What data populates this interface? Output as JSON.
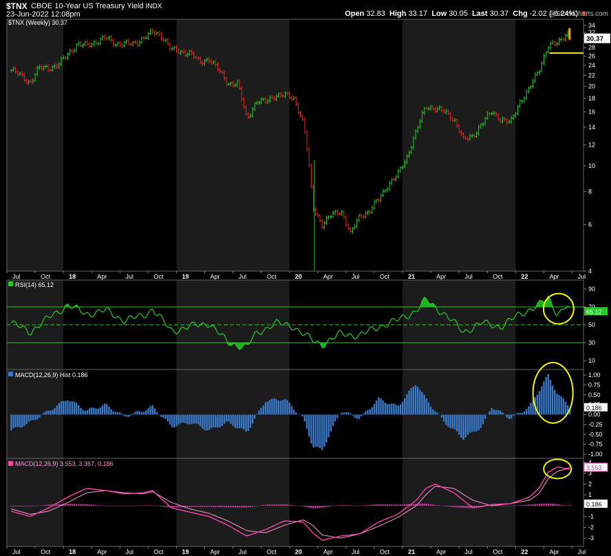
{
  "header": {
    "symbol": "$TNX",
    "name": "CBOE 10-Year US Treasury Yield",
    "exchange": "INDX",
    "date": "23-Jun-2022 12:08pm",
    "watermark": "@StockCharts.com",
    "open_label": "Open",
    "open": "32.83",
    "high_label": "High",
    "high": "33.17",
    "low_label": "Low",
    "low": "30.05",
    "last_label": "Last",
    "last": "30.37",
    "chg_label": "Chg",
    "chg": "-2.02 (-6.24%)",
    "chg_arrow": "▼"
  },
  "colors": {
    "up": "#22cc22",
    "down": "#ee2222",
    "rsi": "#22cc22",
    "hist": "#3a78c8",
    "macd": "#ff44aa",
    "signal": "#ff9ad0",
    "highlight": "#f5f500",
    "price_tag": "#4a4a4a",
    "annotation": "#f5f500"
  },
  "x_axis": {
    "labels": [
      "Jul",
      "Oct",
      "18",
      "Apr",
      "Jul",
      "Oct",
      "19",
      "Apr",
      "Jul",
      "Oct",
      "20",
      "Apr",
      "Jul",
      "Oct",
      "21",
      "Apr",
      "Jul",
      "Oct",
      "22",
      "Apr",
      "Jul"
    ],
    "bold": [
      "18",
      "19",
      "20",
      "21",
      "22"
    ]
  },
  "chart_data": [
    {
      "type": "candlestick",
      "title": "$TNX (Weekly) 30.37",
      "y_scale": "log",
      "ylim": [
        4,
        35
      ],
      "y_ticks": [
        4,
        6,
        8,
        10,
        12,
        14,
        16,
        18,
        20,
        22,
        24,
        26,
        28,
        30,
        32,
        34
      ],
      "last_value": "30.37",
      "support_line": 26.7,
      "series": {
        "name": "$TNX",
        "anchors": [
          [
            "Jul 2017",
            23.0
          ],
          [
            "Aug 2017",
            22.0
          ],
          [
            "Sep 2017",
            20.6
          ],
          [
            "Oct 2017",
            23.5
          ],
          [
            "Nov 2017",
            23.5
          ],
          [
            "Dec 2017",
            24.0
          ],
          [
            "Jan 2018",
            26.5
          ],
          [
            "Feb 2018",
            28.8
          ],
          [
            "Mar 2018",
            28.5
          ],
          [
            "Apr 2018",
            29.5
          ],
          [
            "May 2018",
            30.5
          ],
          [
            "Jun 2018",
            29.0
          ],
          [
            "Jul 2018",
            29.0
          ],
          [
            "Aug 2018",
            28.8
          ],
          [
            "Sep 2018",
            30.5
          ],
          [
            "Oct 2018",
            32.0
          ],
          [
            "Nov 2018",
            31.0
          ],
          [
            "Dec 2018",
            27.5
          ],
          [
            "Jan 2019",
            27.0
          ],
          [
            "Feb 2019",
            26.8
          ],
          [
            "Mar 2019",
            24.5
          ],
          [
            "Apr 2019",
            25.5
          ],
          [
            "May 2019",
            23.0
          ],
          [
            "Jun 2019",
            20.5
          ],
          [
            "Jul 2019",
            20.5
          ],
          [
            "Aug 2019",
            15.0
          ],
          [
            "Sep 2019",
            17.5
          ],
          [
            "Oct 2019",
            17.5
          ],
          [
            "Nov 2019",
            18.5
          ],
          [
            "Dec 2019",
            18.5
          ],
          [
            "Jan 2020",
            18.0
          ],
          [
            "Feb 2020",
            14.5
          ],
          [
            "Mar 2020",
            7.0
          ],
          [
            "Apr 2020",
            6.0
          ],
          [
            "May 2020",
            6.5
          ],
          [
            "Jun 2020",
            6.8
          ],
          [
            "Jul 2020",
            5.5
          ],
          [
            "Aug 2020",
            6.5
          ],
          [
            "Sep 2020",
            6.7
          ],
          [
            "Oct 2020",
            7.5
          ],
          [
            "Nov 2020",
            8.5
          ],
          [
            "Dec 2020",
            9.2
          ],
          [
            "Jan 2021",
            10.8
          ],
          [
            "Feb 2021",
            13.5
          ],
          [
            "Mar 2021",
            16.8
          ],
          [
            "Apr 2021",
            16.5
          ],
          [
            "May 2021",
            16.0
          ],
          [
            "Jun 2021",
            15.0
          ],
          [
            "Jul 2021",
            12.5
          ],
          [
            "Aug 2021",
            13.0
          ],
          [
            "Sep 2021",
            14.5
          ],
          [
            "Oct 2021",
            16.0
          ],
          [
            "Nov 2021",
            15.0
          ],
          [
            "Dec 2021",
            14.5
          ],
          [
            "Jan 2022",
            17.5
          ],
          [
            "Feb 2022",
            19.5
          ],
          [
            "Mar 2022",
            23.0
          ],
          [
            "Apr 2022",
            28.5
          ],
          [
            "May 2022",
            29.0
          ],
          [
            "Jun 2022",
            32.0
          ],
          [
            "Jun 23 2022",
            30.37
          ]
        ]
      }
    },
    {
      "type": "line",
      "title": "RSI(14) 65.12",
      "ylim": [
        0,
        100
      ],
      "y_ticks": [
        10,
        30,
        50,
        70,
        90
      ],
      "bands": [
        30,
        50,
        70
      ],
      "last_value": "65.12",
      "series": {
        "name": "RSI(14)",
        "anchors": [
          [
            "Jul 2017",
            52
          ],
          [
            "Sep 2017",
            42
          ],
          [
            "Nov 2017",
            58
          ],
          [
            "Jan 2018",
            72
          ],
          [
            "Mar 2018",
            62
          ],
          [
            "May 2018",
            66
          ],
          [
            "Jul 2018",
            55
          ],
          [
            "Sep 2018",
            60
          ],
          [
            "Oct 2018",
            68
          ],
          [
            "Dec 2018",
            43
          ],
          [
            "Feb 2019",
            48
          ],
          [
            "Apr 2019",
            52
          ],
          [
            "Jun 2019",
            30
          ],
          [
            "Aug 2019",
            25
          ],
          [
            "Sep 2019",
            40
          ],
          [
            "Nov 2019",
            52
          ],
          [
            "Jan 2020",
            48
          ],
          [
            "Mar 2020",
            32
          ],
          [
            "Apr 2020",
            28
          ],
          [
            "Jun 2020",
            40
          ],
          [
            "Aug 2020",
            38
          ],
          [
            "Oct 2020",
            48
          ],
          [
            "Dec 2020",
            55
          ],
          [
            "Feb 2021",
            66
          ],
          [
            "Mar 2021",
            78
          ],
          [
            "May 2021",
            62
          ],
          [
            "Jul 2021",
            42
          ],
          [
            "Sep 2021",
            52
          ],
          [
            "Nov 2021",
            48
          ],
          [
            "Jan 2022",
            62
          ],
          [
            "Mar 2022",
            72
          ],
          [
            "Apr 2022",
            80
          ],
          [
            "May 2022",
            62
          ],
          [
            "Jun 2022",
            72
          ],
          [
            "Jun 23 2022",
            65.12
          ]
        ]
      }
    },
    {
      "type": "bar",
      "title": "MACD(12,26,9) Hist 0.186",
      "ylim": [
        -1.0,
        1.0
      ],
      "y_ticks": [
        -1.0,
        -0.75,
        -0.5,
        -0.25,
        0.0,
        0.25,
        0.5,
        0.75,
        1.0
      ],
      "y_tick_labels": [
        "-1.00",
        "-0.75",
        "-0.50",
        "-0.25",
        "0.00",
        "0.25",
        "0.50",
        "0.75",
        "1.00"
      ],
      "last_value": "0.186",
      "series": {
        "name": "Hist",
        "anchors": [
          [
            "Jul 2017",
            -0.4
          ],
          [
            "Sep 2017",
            -0.2
          ],
          [
            "Nov 2017",
            0.1
          ],
          [
            "Jan 2018",
            0.4
          ],
          [
            "Mar 2018",
            0.1
          ],
          [
            "May 2018",
            0.25
          ],
          [
            "Jul 2018",
            -0.05
          ],
          [
            "Sep 2018",
            0.1
          ],
          [
            "Oct 2018",
            0.2
          ],
          [
            "Dec 2018",
            -0.3
          ],
          [
            "Feb 2019",
            -0.2
          ],
          [
            "Apr 2019",
            -0.4
          ],
          [
            "Jun 2019",
            -0.2
          ],
          [
            "Aug 2019",
            -0.45
          ],
          [
            "Oct 2019",
            0.35
          ],
          [
            "Dec 2019",
            0.4
          ],
          [
            "Feb 2020",
            -0.1
          ],
          [
            "Mar 2020",
            -0.8
          ],
          [
            "Apr 2020",
            -0.9
          ],
          [
            "Jun 2020",
            0.1
          ],
          [
            "Aug 2020",
            -0.1
          ],
          [
            "Oct 2020",
            0.4
          ],
          [
            "Dec 2020",
            0.2
          ],
          [
            "Feb 2021",
            0.8
          ],
          [
            "Mar 2021",
            0.4
          ],
          [
            "May 2021",
            -0.2
          ],
          [
            "Jul 2021",
            -0.6
          ],
          [
            "Sep 2021",
            -0.3
          ],
          [
            "Oct 2021",
            0.2
          ],
          [
            "Dec 2021",
            -0.1
          ],
          [
            "Feb 2022",
            0.2
          ],
          [
            "Mar 2022",
            0.6
          ],
          [
            "Apr 2022",
            1.0
          ],
          [
            "May 2022",
            0.5
          ],
          [
            "Jun 2022",
            0.3
          ],
          [
            "Jun 23 2022",
            0.186
          ]
        ]
      }
    },
    {
      "type": "line",
      "title": "MACD(12,26,9) 3.553, 3.367, 0.186",
      "ylim": [
        -3.5,
        4
      ],
      "y_ticks": [
        -3,
        -2,
        -1,
        0,
        1,
        2,
        3,
        4
      ],
      "last_value": "3.553",
      "secondary_value": "0.186",
      "series": [
        {
          "name": "MACD",
          "anchors": [
            [
              "Jul 2017",
              -0.5
            ],
            [
              "Sep 2017",
              -1.0
            ],
            [
              "Nov 2017",
              -0.2
            ],
            [
              "Jan 2018",
              0.8
            ],
            [
              "Mar 2018",
              1.6
            ],
            [
              "May 2018",
              1.4
            ],
            [
              "Jul 2018",
              1.1
            ],
            [
              "Sep 2018",
              1.2
            ],
            [
              "Oct 2018",
              1.4
            ],
            [
              "Dec 2018",
              -0.2
            ],
            [
              "Feb 2019",
              -0.6
            ],
            [
              "Apr 2019",
              -1.0
            ],
            [
              "Jun 2019",
              -1.8
            ],
            [
              "Aug 2019",
              -2.8
            ],
            [
              "Oct 2019",
              -2.2
            ],
            [
              "Dec 2019",
              -1.4
            ],
            [
              "Feb 2020",
              -1.5
            ],
            [
              "Mar 2020",
              -2.5
            ],
            [
              "Apr 2020",
              -3.2
            ],
            [
              "Jun 2020",
              -2.8
            ],
            [
              "Aug 2020",
              -2.6
            ],
            [
              "Oct 2020",
              -1.5
            ],
            [
              "Dec 2020",
              -0.8
            ],
            [
              "Feb 2021",
              0.5
            ],
            [
              "Mar 2021",
              1.6
            ],
            [
              "Apr 2021",
              2.0
            ],
            [
              "Jun 2021",
              1.2
            ],
            [
              "Aug 2021",
              -0.2
            ],
            [
              "Oct 2021",
              0.1
            ],
            [
              "Dec 2021",
              0.2
            ],
            [
              "Feb 2022",
              0.8
            ],
            [
              "Mar 2022",
              1.6
            ],
            [
              "Apr 2022",
              3.1
            ],
            [
              "May 2022",
              3.6
            ],
            [
              "Jun 2022",
              3.4
            ],
            [
              "Jun 23 2022",
              3.553
            ]
          ]
        },
        {
          "name": "Signal",
          "anchors": [
            [
              "Jul 2017",
              -0.3
            ],
            [
              "Sep 2017",
              -0.8
            ],
            [
              "Nov 2017",
              -0.5
            ],
            [
              "Jan 2018",
              0.3
            ],
            [
              "Mar 2018",
              1.2
            ],
            [
              "May 2018",
              1.4
            ],
            [
              "Jul 2018",
              1.2
            ],
            [
              "Sep 2018",
              1.1
            ],
            [
              "Oct 2018",
              1.3
            ],
            [
              "Dec 2018",
              0.3
            ],
            [
              "Feb 2019",
              -0.3
            ],
            [
              "Apr 2019",
              -0.7
            ],
            [
              "Jun 2019",
              -1.4
            ],
            [
              "Aug 2019",
              -2.3
            ],
            [
              "Oct 2019",
              -2.5
            ],
            [
              "Dec 2019",
              -1.8
            ],
            [
              "Feb 2020",
              -1.3
            ],
            [
              "Mar 2020",
              -1.8
            ],
            [
              "Apr 2020",
              -2.7
            ],
            [
              "Jun 2020",
              -3.0
            ],
            [
              "Aug 2020",
              -2.6
            ],
            [
              "Oct 2020",
              -1.9
            ],
            [
              "Dec 2020",
              -1.1
            ],
            [
              "Feb 2021",
              0.0
            ],
            [
              "Mar 2021",
              1.0
            ],
            [
              "Apr 2021",
              1.8
            ],
            [
              "Jun 2021",
              1.6
            ],
            [
              "Aug 2021",
              0.5
            ],
            [
              "Oct 2021",
              0.0
            ],
            [
              "Dec 2021",
              0.2
            ],
            [
              "Feb 2022",
              0.5
            ],
            [
              "Mar 2022",
              1.1
            ],
            [
              "Apr 2022",
              2.5
            ],
            [
              "May 2022",
              3.2
            ],
            [
              "Jun 2022",
              3.4
            ],
            [
              "Jun 23 2022",
              3.367
            ]
          ]
        }
      ]
    }
  ]
}
